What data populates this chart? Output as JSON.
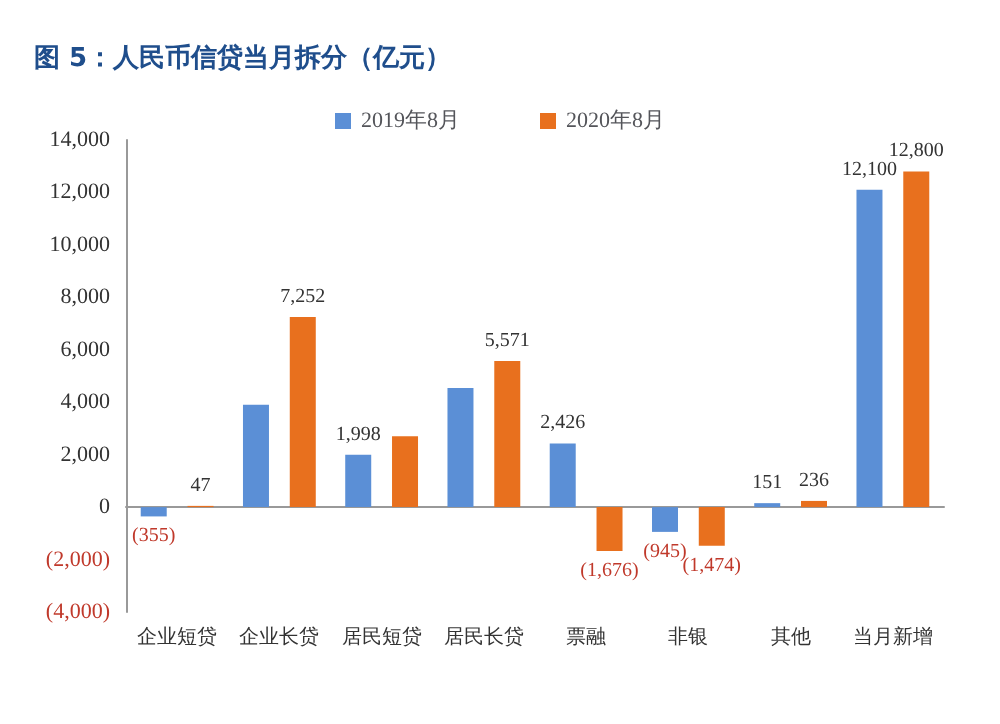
{
  "chart_data": {
    "type": "bar",
    "title": "图 5：人民币信贷当月拆分（亿元）",
    "categories": [
      "企业短贷",
      "企业长贷",
      "居民短贷",
      "居民长贷",
      "票融",
      "非银",
      "其他",
      "当月新增"
    ],
    "series": [
      {
        "name": "2019年8月",
        "color": "#5b8fd6",
        "values": [
          -355,
          3900,
          1998,
          4540,
          2426,
          -945,
          151,
          12100
        ],
        "value_labels": [
          "(355)",
          null,
          "1,998",
          null,
          "2,426",
          "(945)",
          "151",
          "12,100"
        ]
      },
      {
        "name": "2020年8月",
        "color": "#e8701e",
        "values": [
          47,
          7252,
          2700,
          5571,
          -1676,
          -1474,
          236,
          12800
        ],
        "value_labels": [
          "47",
          "7,252",
          null,
          "5,571",
          "(1,676)",
          "(1,474)",
          "236",
          "12,800"
        ]
      }
    ],
    "ylim": [
      -4000,
      14000
    ],
    "yticks": [
      {
        "value": -4000,
        "label": "(4,000)"
      },
      {
        "value": -2000,
        "label": "(2,000)"
      },
      {
        "value": 0,
        "label": "0"
      },
      {
        "value": 2000,
        "label": "2,000"
      },
      {
        "value": 4000,
        "label": "4,000"
      },
      {
        "value": 6000,
        "label": "6,000"
      },
      {
        "value": 8000,
        "label": "8,000"
      },
      {
        "value": 10000,
        "label": "10,000"
      },
      {
        "value": 12000,
        "label": "12,000"
      },
      {
        "value": 14000,
        "label": "14,000"
      }
    ],
    "legend": "top"
  }
}
